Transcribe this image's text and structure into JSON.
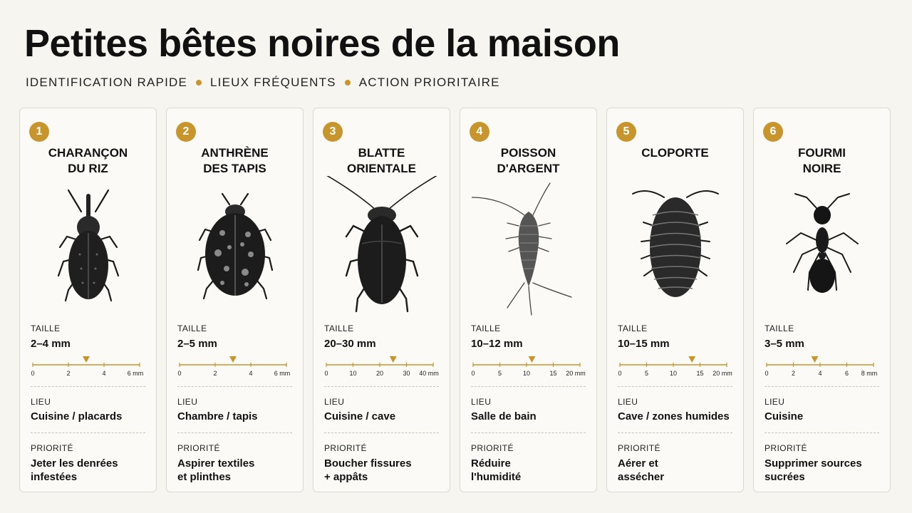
{
  "header": {
    "title": "Petites bêtes noires de la maison",
    "tags": [
      "IDENTIFICATION RAPIDE",
      "LIEUX FRÉQUENTS",
      "ACTION PRIORITAIRE"
    ]
  },
  "colors": {
    "accent": "#c8952d",
    "ink": "#111111",
    "card": "#fbfaf7",
    "border": "#ddd8cd"
  },
  "labels": {
    "size": "TAILLE",
    "place": "LIEU",
    "priority": "PRIORITÉ"
  },
  "cards": [
    {
      "number": "1",
      "name": "CHARANÇON\nDU RIZ",
      "icon": "weevil-icon",
      "size": "2–4 mm",
      "ticks": [
        "0",
        "2",
        "4",
        "6 mm"
      ],
      "scale_max": 6,
      "marker": 3,
      "place": "Cuisine / placards",
      "priority": "Jeter les denrées\ninfestées"
    },
    {
      "number": "2",
      "name": "ANTHRÈNE\nDES TAPIS",
      "icon": "carpet-beetle-icon",
      "size": "2–5 mm",
      "ticks": [
        "0",
        "2",
        "4",
        "6 mm"
      ],
      "scale_max": 6,
      "marker": 3,
      "place": "Chambre / tapis",
      "priority": "Aspirer textiles\net plinthes"
    },
    {
      "number": "3",
      "name": "BLATTE\nORIENTALE",
      "icon": "cockroach-icon",
      "size": "20–30 mm",
      "ticks": [
        "0",
        "10",
        "20",
        "30",
        "40 mm"
      ],
      "scale_max": 40,
      "marker": 25,
      "place": "Cuisine / cave",
      "priority": "Boucher fissures\n+ appâts"
    },
    {
      "number": "4",
      "name": "POISSON\nD'ARGENT",
      "icon": "silverfish-icon",
      "size": "10–12 mm",
      "ticks": [
        "0",
        "5",
        "10",
        "15",
        "20 mm"
      ],
      "scale_max": 20,
      "marker": 11,
      "place": "Salle de bain",
      "priority": "Réduire\nl'humidité"
    },
    {
      "number": "5",
      "name": "CLOPORTE",
      "icon": "woodlouse-icon",
      "size": "10–15 mm",
      "ticks": [
        "0",
        "5",
        "10",
        "15",
        "20 mm"
      ],
      "scale_max": 20,
      "marker": 13.5,
      "place": "Cave / zones humides",
      "priority": "Aérer et\nassécher"
    },
    {
      "number": "6",
      "name": "FOURMI\nNOIRE",
      "icon": "ant-icon",
      "size": "3–5 mm",
      "ticks": [
        "0",
        "2",
        "4",
        "6",
        "8 mm"
      ],
      "scale_max": 8,
      "marker": 3.6,
      "place": "Cuisine",
      "priority": "Supprimer sources\nsucrées"
    }
  ]
}
